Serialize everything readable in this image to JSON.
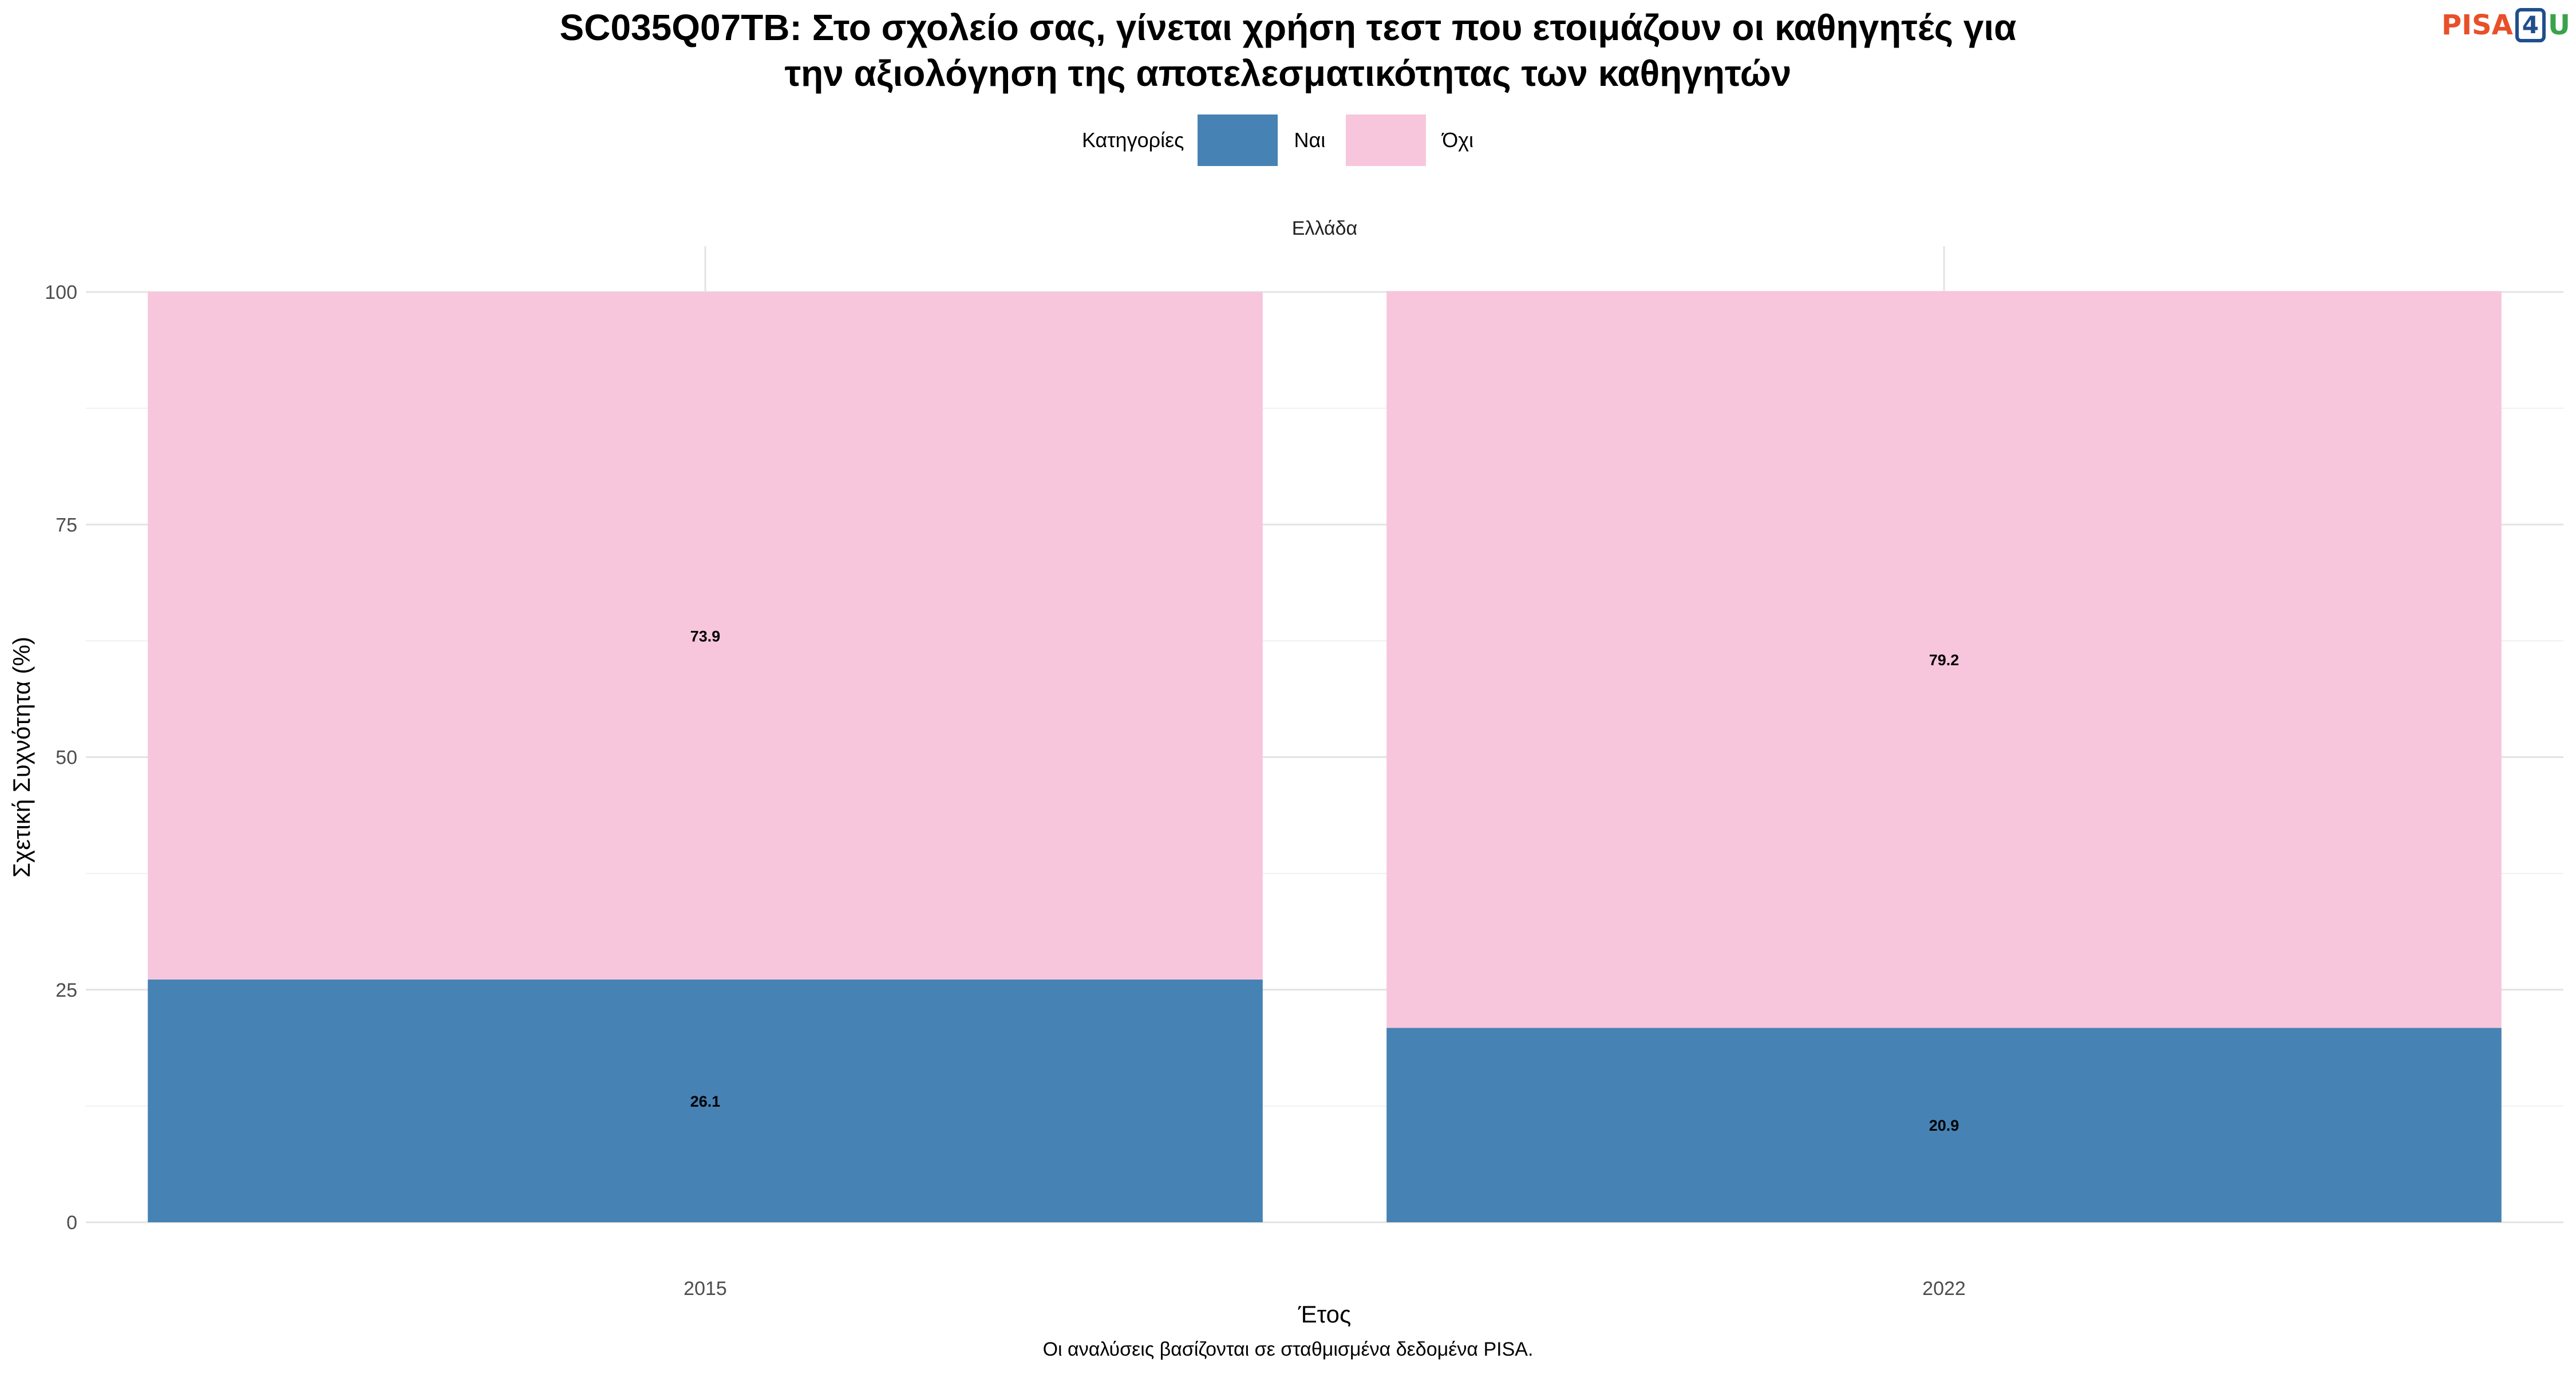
{
  "title": {
    "line1": "SC035Q07TB: Στο σχολείο σας, γίνεται χρήση τεστ που ετοιμάζουν οι καθηγητές για",
    "line2": "την αξιολόγηση της αποτελεσματικότητας των καθηγητών"
  },
  "logo": {
    "part1": "PISA",
    "part2": "4",
    "part3": "U"
  },
  "legend": {
    "title": "Κατηγορίες",
    "items": [
      {
        "label": "Ναι",
        "color": "#4682b4"
      },
      {
        "label": "Όχι",
        "color": "#f7c6dc"
      }
    ]
  },
  "caption": "Οι αναλύσεις βασίζονται σε σταθμισμένα δεδομένα PISA.",
  "chart_data": {
    "type": "bar",
    "stacked": true,
    "facet": "Ελλάδα",
    "categories": [
      "2015",
      "2022"
    ],
    "series": [
      {
        "name": "Ναι",
        "values": [
          26.1,
          20.9
        ],
        "color": "#4682b4"
      },
      {
        "name": "Όχι",
        "values": [
          73.9,
          79.2
        ],
        "color": "#f7c6dc"
      }
    ],
    "data_labels": [
      [
        "26.1",
        "20.9"
      ],
      [
        "73.9",
        "79.2"
      ]
    ],
    "xlabel": "Έτος",
    "ylabel": "Σχετική Συχνότητα (%)",
    "ylim": [
      0,
      100
    ],
    "yticks": [
      0,
      25,
      50,
      75,
      100
    ],
    "grid": true
  }
}
